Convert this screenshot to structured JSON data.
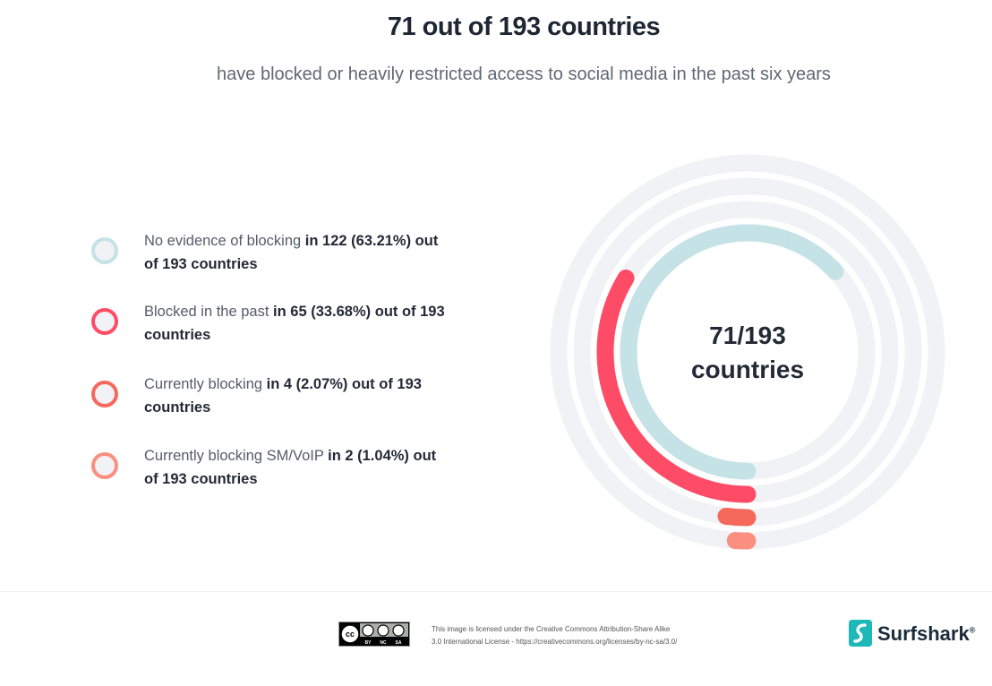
{
  "header": {
    "title": "71 out of 193 countries",
    "subtitle": "have blocked or heavily restricted access to social media in the past six years"
  },
  "legend": [
    {
      "normal": "No evidence of blocking ",
      "bold": "in 122 (63.21%) out of 193 countries",
      "color": "#c5e2e6"
    },
    {
      "normal": "Blocked in the past ",
      "bold": "in 65 (33.68%) out of 193 countries",
      "color": "#ff4c66"
    },
    {
      "normal": "Currently blocking ",
      "bold": "in 4 (2.07%) out of 193 countries",
      "color": "#f4695c"
    },
    {
      "normal": "Currently blocking SM/VoIP ",
      "bold": "in 2 (1.04%) out of 193 countries",
      "color": "#fb8f80"
    }
  ],
  "chart_data": {
    "type": "radial-bar",
    "total": 193,
    "center_label": [
      "71/193",
      "countries"
    ],
    "track_color": "#f1f2f6",
    "series": [
      {
        "name": "No evidence of blocking",
        "value": 122,
        "percent": 63.21,
        "color": "#c5e2e6"
      },
      {
        "name": "Blocked in the past",
        "value": 65,
        "percent": 33.68,
        "color": "#ff4c66"
      },
      {
        "name": "Currently blocking",
        "value": 4,
        "percent": 2.07,
        "color": "#f4695c"
      },
      {
        "name": "Currently blocking SM/VoIP",
        "value": 2,
        "percent": 1.04,
        "color": "#fb8f80"
      }
    ]
  },
  "footer": {
    "license_line1": "This image is licensed under the Creative Commons Attribution-Share Alike",
    "license_line2": "3.0 International License - https://creativecommons.org/licenses/by-nc-sa/3.0/",
    "cc_badge": {
      "cc": "cc",
      "labels": [
        "BY",
        "NC",
        "SA"
      ]
    },
    "brand_name": "Surfshark",
    "brand_mark": "®",
    "brand_color": "#1b2b3a",
    "brand_icon": "surfshark-logo-icon"
  }
}
